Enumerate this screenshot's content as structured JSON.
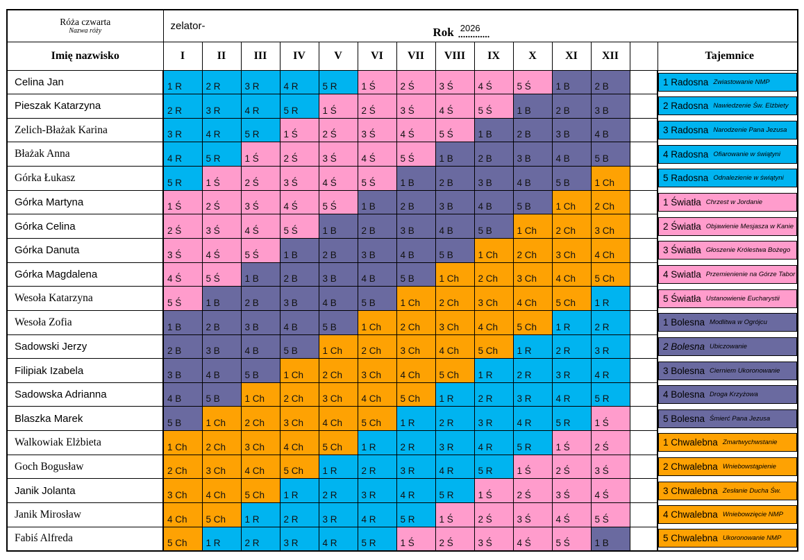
{
  "header": {
    "rose_title": "Róża czwarta",
    "rose_subtitle": "Nazwa róży",
    "zelator_label": "zelator-",
    "year_label": "Rok",
    "year_value": "2026",
    "year_dots": ".............",
    "name_header": "Imię nazwisko",
    "months": [
      "I",
      "II",
      "III",
      "IV",
      "V",
      "VI",
      "VII",
      "VIII",
      "IX",
      "X",
      "XI",
      "XII"
    ],
    "tajemnice_header": "Tajemnice"
  },
  "colors": {
    "R": "#00B4F0",
    "Ś": "#FF9CCC",
    "B": "#6A6AA0",
    "Ch": "#FEA203"
  },
  "rows": [
    {
      "name": "Celina Jan",
      "serif": false,
      "cells": [
        "1 R",
        "2 R",
        "3 R",
        "4 R",
        "5 R",
        "1 Ś",
        "2 Ś",
        "3 Ś",
        "4 Ś",
        "5 Ś",
        "1 B",
        "2 B"
      ]
    },
    {
      "name": "Pieszak Katarzyna",
      "serif": false,
      "cells": [
        "2 R",
        "3 R",
        "4 R",
        "5 R",
        "1 Ś",
        "2 Ś",
        "3 Ś",
        "4 Ś",
        "5 Ś",
        "1 B",
        "2 B",
        "3 B"
      ]
    },
    {
      "name": "Zelich-Błażak Karina",
      "serif": true,
      "cells": [
        "3 R",
        "4 R",
        "5 R",
        "1 Ś",
        "2 Ś",
        "3 Ś",
        "4 Ś",
        "5 Ś",
        "1 B",
        "2 B",
        "3 B",
        "4 B"
      ]
    },
    {
      "name": "Błażak Anna",
      "serif": true,
      "cells": [
        "4 R",
        "5 R",
        "1 Ś",
        "2 Ś",
        "3 Ś",
        "4 Ś",
        "5 Ś",
        "1 B",
        "2 B",
        "3 B",
        "4 B",
        "5 B"
      ]
    },
    {
      "name": "Górka Łukasz",
      "serif": true,
      "cells": [
        "5 R",
        "1 Ś",
        "2 Ś",
        "3 Ś",
        "4 Ś",
        "5 Ś",
        "1 B",
        "2 B",
        "3 B",
        "4 B",
        "5 B",
        "1 Ch"
      ]
    },
    {
      "name": "Górka Martyna",
      "serif": false,
      "cells": [
        "1 Ś",
        "2 Ś",
        "3 Ś",
        "4 Ś",
        "5 Ś",
        "1 B",
        "2 B",
        "3 B",
        "4 B",
        "5 B",
        "1 Ch",
        "2 Ch"
      ]
    },
    {
      "name": "Górka Celina",
      "serif": false,
      "cells": [
        "2 Ś",
        "3 Ś",
        "4 Ś",
        "5 Ś",
        "1 B",
        "2 B",
        "3 B",
        "4 B",
        "5 B",
        "1 Ch",
        "2 Ch",
        "3 Ch"
      ]
    },
    {
      "name": "Górka Danuta",
      "serif": false,
      "cells": [
        "3 Ś",
        "4 Ś",
        "5 Ś",
        "1 B",
        "2 B",
        "3 B",
        "4 B",
        "5 B",
        "1 Ch",
        "2 Ch",
        "3 Ch",
        "4 Ch"
      ]
    },
    {
      "name": "Górka Magdalena",
      "serif": false,
      "cells": [
        "4 Ś",
        "5 Ś",
        "1 B",
        "2 B",
        "3 B",
        "4 B",
        "5 B",
        "1 Ch",
        "2 Ch",
        "3 Ch",
        "4 Ch",
        "5 Ch"
      ]
    },
    {
      "name": "Wesoła Katarzyna",
      "serif": true,
      "cells": [
        "5 Ś",
        "1 B",
        "2 B",
        "3 B",
        "4 B",
        "5 B",
        "1 Ch",
        "2 Ch",
        "3 Ch",
        "4 Ch",
        "5 Ch",
        "1 R"
      ]
    },
    {
      "name": "Wesoła Zofia",
      "serif": true,
      "cells": [
        "1 B",
        "2 B",
        "3 B",
        "4 B",
        "5 B",
        "1 Ch",
        "2 Ch",
        "3 Ch",
        "4 Ch",
        "5 Ch",
        "1 R",
        "2 R"
      ]
    },
    {
      "name": "Sadowski Jerzy",
      "serif": false,
      "cells": [
        "2 B",
        "3 B",
        "4 B",
        "5 B",
        "1 Ch",
        "2 Ch",
        "3 Ch",
        "4 Ch",
        "5 Ch",
        "1 R",
        "2 R",
        "3 R"
      ]
    },
    {
      "name": "Filipiak Izabela",
      "serif": false,
      "cells": [
        "3 B",
        "4 B",
        "5 B",
        "1 Ch",
        "2 Ch",
        "3 Ch",
        "4 Ch",
        "5 Ch",
        "1 R",
        "2 R",
        "3 R",
        "4 R"
      ]
    },
    {
      "name": "Sadowska Adrianna",
      "serif": false,
      "cells": [
        "4 B",
        "5 B",
        "1 Ch",
        "2 Ch",
        "3 Ch",
        "4 Ch",
        "5 Ch",
        "1 R",
        "2 R",
        "3 R",
        "4 R",
        "5 R"
      ]
    },
    {
      "name": "Blaszka Marek",
      "serif": false,
      "cells": [
        "5 B",
        "1 Ch",
        "2 Ch",
        "3 Ch",
        "4 Ch",
        "5 Ch",
        "1 R",
        "2 R",
        "3 R",
        "4 R",
        "5 R",
        "1 Ś"
      ]
    },
    {
      "name": "Walkowiak Elżbieta",
      "serif": true,
      "cells": [
        "1 Ch",
        "2 Ch",
        "3 Ch",
        "4 Ch",
        "5 Ch",
        "1 R",
        "2 R",
        "3 R",
        "4 R",
        "5 R",
        "1 Ś",
        "2 Ś"
      ]
    },
    {
      "name": "Goch Bogusław",
      "serif": true,
      "cells": [
        "2 Ch",
        "3 Ch",
        "4 Ch",
        "5 Ch",
        "1 R",
        "2 R",
        "3 R",
        "4 R",
        "5 R",
        "1 Ś",
        "2 Ś",
        "3 Ś"
      ]
    },
    {
      "name": "Janik Jolanta",
      "serif": false,
      "cells": [
        "3 Ch",
        "4 Ch",
        "5 Ch",
        "1 R",
        "2 R",
        "3 R",
        "4 R",
        "5 R",
        "1 Ś",
        "2 Ś",
        "3 Ś",
        "4 Ś"
      ]
    },
    {
      "name": "Janik Mirosław",
      "serif": true,
      "cells": [
        "4 Ch",
        "5 Ch",
        "1 R",
        "2 R",
        "3 R",
        "4 R",
        "5 R",
        "1 Ś",
        "2 Ś",
        "3 Ś",
        "4 Ś",
        "5 Ś"
      ]
    },
    {
      "name": "Fabiś Alfreda",
      "serif": true,
      "cells": [
        "5 Ch",
        "1 R",
        "2 R",
        "3 R",
        "4 R",
        "5 R",
        "1 Ś",
        "2 Ś",
        "3 Ś",
        "4 Ś",
        "5 Ś",
        "1 B"
      ]
    }
  ],
  "tajemnice": [
    {
      "label": "1 Radosna",
      "mystery": "Zwiastowanie NMP",
      "type": "R",
      "italic": false
    },
    {
      "label": "2 Radosna",
      "mystery": "Nawiedzenie Św. Elżbiety",
      "type": "R",
      "italic": false
    },
    {
      "label": "3 Radosna",
      "mystery": "Narodzenie Pana Jezusa",
      "type": "R",
      "italic": false
    },
    {
      "label": "4 Radosna",
      "mystery": "Ofiarowanie w świątyni",
      "type": "R",
      "italic": false
    },
    {
      "label": "5 Radosna",
      "mystery": "Odnalezienie w świątyni",
      "type": "R",
      "italic": false
    },
    {
      "label": "1 Światła",
      "mystery": "Chrzest w Jordanie",
      "type": "Ś",
      "italic": false
    },
    {
      "label": "2 Światła",
      "mystery": "Objawienie Mesjasza w Kanie",
      "type": "Ś",
      "italic": false
    },
    {
      "label": "3 Światła",
      "mystery": "Głoszenie Królestwa Bożego",
      "type": "Ś",
      "italic": false
    },
    {
      "label": "4 Swiatla",
      "mystery": "Przemienienie na Górze Tabor",
      "type": "Ś",
      "italic": false
    },
    {
      "label": "5 Światła",
      "mystery": "Ustanowienie Eucharystii",
      "type": "Ś",
      "italic": false
    },
    {
      "label": "1 Bolesna",
      "mystery": "Modlitwa w Ogrójcu",
      "type": "B",
      "italic": false
    },
    {
      "label": "2 Bolesna",
      "mystery": "Ubiczowanie",
      "type": "B",
      "italic": true
    },
    {
      "label": "3 Bolesna",
      "mystery": "Cierniem Ukoronowanie",
      "type": "B",
      "italic": false
    },
    {
      "label": "4 Bolesna",
      "mystery": "Droga Krzyżowa",
      "type": "B",
      "italic": false
    },
    {
      "label": "5 Bolesna",
      "mystery": "Śmierć Pana Jezusa",
      "type": "B",
      "italic": false
    },
    {
      "label": "1 Chwalebna",
      "mystery": "Zmartwychwstanie",
      "type": "Ch",
      "italic": false
    },
    {
      "label": "2 Chwalebna",
      "mystery": "Wniebowstąpienie",
      "type": "Ch",
      "italic": false
    },
    {
      "label": "3 Chwalebna",
      "mystery": "Zesłanie Ducha Św.",
      "type": "Ch",
      "italic": false
    },
    {
      "label": "4 Chwalebna",
      "mystery": "Wniebowzięcie NMP",
      "type": "Ch",
      "italic": false
    },
    {
      "label": "5 Chwalebna",
      "mystery": "Ukoronowanie NMP",
      "type": "Ch",
      "italic": false
    }
  ]
}
